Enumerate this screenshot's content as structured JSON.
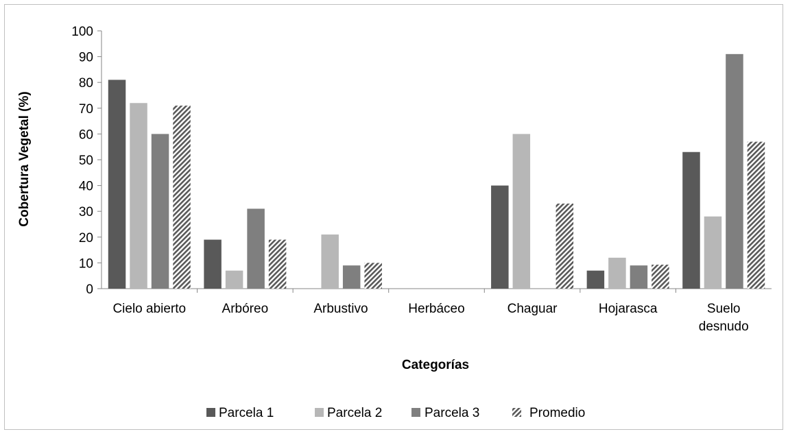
{
  "chart_data": {
    "type": "bar",
    "categories": [
      [
        "Cielo abierto"
      ],
      [
        "Arbóreo"
      ],
      [
        "Arbustivo"
      ],
      [
        "Herbáceo"
      ],
      [
        "Chaguar"
      ],
      [
        "Hojarasca"
      ],
      [
        "Suelo",
        "desnudo"
      ]
    ],
    "series": [
      {
        "name": "Parcela 1",
        "values": [
          81,
          19,
          0,
          0,
          40,
          7,
          53
        ],
        "color": "#595959",
        "pattern": "solid"
      },
      {
        "name": "Parcela 2",
        "values": [
          72,
          7,
          21,
          0,
          60,
          12,
          28
        ],
        "color": "#b7b7b7",
        "pattern": "solid"
      },
      {
        "name": "Parcela 3",
        "values": [
          60,
          31,
          9,
          0,
          0,
          9,
          91
        ],
        "color": "#7f7f7f",
        "pattern": "solid"
      },
      {
        "name": "Promedio",
        "values": [
          71,
          19,
          10,
          0,
          33,
          9.3,
          57
        ],
        "color": "#595959",
        "pattern": "diagonal-hatch"
      }
    ],
    "title": "",
    "xlabel": "Categorías",
    "ylabel": "Cobertura Vegetal (%)",
    "ylim": [
      0,
      100
    ],
    "yticks": [
      0,
      10,
      20,
      30,
      40,
      50,
      60,
      70,
      80,
      90,
      100
    ],
    "grid": false,
    "legend_position": "bottom"
  }
}
